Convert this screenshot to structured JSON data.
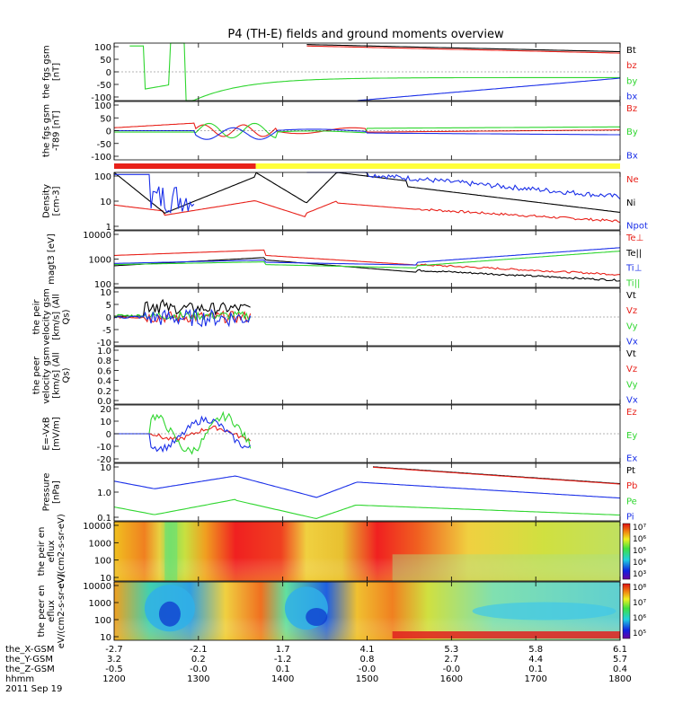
{
  "title": "P4 (TH-E) fields and ground moments overview",
  "colors": {
    "black": "#000000",
    "red": "#e8211a",
    "green": "#2fd62f",
    "blue": "#1a2fe8",
    "yellow": "#ffff3a"
  },
  "time_axis": {
    "range": [
      "12:00",
      "18:00"
    ],
    "ticks": [
      "1200",
      "1300",
      "1400",
      "1500",
      "1600",
      "1700",
      "1800"
    ]
  },
  "ephemeris": {
    "labels": [
      "the_X-GSM",
      "the_Y-GSM",
      "the_Z-GSM",
      "hhmm",
      "2011 Sep 19"
    ],
    "rows": [
      [
        "-2.7",
        "-2.1",
        "1.7",
        "4.1",
        "5.3",
        "5.8",
        "6.1"
      ],
      [
        "3.2",
        "0.2",
        "-1.2",
        "0.8",
        "2.7",
        "4.4",
        "5.7"
      ],
      [
        "-0.5",
        "-0.0",
        "0.1",
        "-0.0",
        "-0.0",
        "0.1",
        "0.4"
      ],
      [
        "1200",
        "1300",
        "1400",
        "1500",
        "1600",
        "1700",
        "1800"
      ]
    ]
  },
  "mode_bar": {
    "segments": [
      {
        "color": "red",
        "start": 0.0,
        "end": 0.28
      },
      {
        "color": "yellow",
        "start": 0.28,
        "end": 1.0
      }
    ]
  },
  "chart_data": [
    {
      "id": "fgs",
      "type": "line",
      "ylabel": "the fgs gsm [nT]",
      "ylim": [
        -100,
        100
      ],
      "yticks": [
        "100",
        "50",
        "0",
        "-50",
        "-100"
      ],
      "series": [
        {
          "name": "Bt",
          "color": "black"
        },
        {
          "name": "bz",
          "color": "red"
        },
        {
          "name": "by",
          "color": "green"
        },
        {
          "name": "bx",
          "color": "blue"
        }
      ]
    },
    {
      "id": "fgs_t89",
      "type": "line",
      "ylabel": "the fgs gsm -T89 [nT]",
      "ylim": [
        -100,
        100
      ],
      "yticks": [
        "100",
        "50",
        "0",
        "-50",
        "-100"
      ],
      "series": [
        {
          "name": "Bz",
          "color": "red"
        },
        {
          "name": "By",
          "color": "green"
        },
        {
          "name": "Bx",
          "color": "blue"
        }
      ]
    },
    {
      "id": "density",
      "type": "line",
      "ylabel": "Density [cm-3]",
      "yscale": "log",
      "ylim": [
        0.3,
        200
      ],
      "yticks": [
        "100",
        "10",
        "1"
      ],
      "series": [
        {
          "name": "Ne",
          "color": "red"
        },
        {
          "name": "Ni",
          "color": "black"
        },
        {
          "name": "Npot",
          "color": "blue"
        }
      ]
    },
    {
      "id": "temp",
      "type": "line",
      "ylabel": "magt3 [eV]",
      "yscale": "log",
      "ylim": [
        40,
        12000
      ],
      "yticks": [
        "10000",
        "1000",
        "100"
      ],
      "series": [
        {
          "name": "Te⊥",
          "color": "red"
        },
        {
          "name": "Te||",
          "color": "black"
        },
        {
          "name": "Ti⊥",
          "color": "blue"
        },
        {
          "name": "Ti||",
          "color": "green"
        }
      ]
    },
    {
      "id": "peir_vel",
      "type": "line",
      "ylabel": "the peir velocity gsm [km/s] (All Qs)",
      "ylim": [
        -10,
        10
      ],
      "yticks": [
        "10",
        "5",
        "0",
        "-5",
        "-10"
      ],
      "series": [
        {
          "name": "Vt",
          "color": "black"
        },
        {
          "name": "Vz",
          "color": "red"
        },
        {
          "name": "Vy",
          "color": "green"
        },
        {
          "name": "Vx",
          "color": "blue"
        }
      ]
    },
    {
      "id": "peer_vel",
      "type": "line",
      "ylabel": "the peer velocity gsm [km/s] (All Qs)",
      "ylim": [
        0,
        1
      ],
      "yticks": [
        "1.0",
        "0.8",
        "0.6",
        "0.4",
        "0.2",
        "0.0"
      ],
      "series": [
        {
          "name": "Vt",
          "color": "black"
        },
        {
          "name": "Vz",
          "color": "red"
        },
        {
          "name": "Vy",
          "color": "green"
        },
        {
          "name": "Vx",
          "color": "blue"
        }
      ]
    },
    {
      "id": "efield",
      "type": "line",
      "ylabel": "E=-VxB [mV/m]",
      "ylim": [
        -20,
        20
      ],
      "yticks": [
        "20",
        "10",
        "0",
        "-10",
        "-20"
      ],
      "series": [
        {
          "name": "Ez",
          "color": "red"
        },
        {
          "name": "Ey",
          "color": "green"
        },
        {
          "name": "Ex",
          "color": "blue"
        }
      ]
    },
    {
      "id": "pressure",
      "type": "line",
      "ylabel": "Pressure [nPa]",
      "yscale": "log",
      "ylim": [
        0.03,
        30
      ],
      "yticks": [
        "10",
        "1.0",
        "0.1"
      ],
      "series": [
        {
          "name": "Pt",
          "color": "black"
        },
        {
          "name": "Pb",
          "color": "red"
        },
        {
          "name": "Pe",
          "color": "green"
        },
        {
          "name": "Pi",
          "color": "blue"
        }
      ]
    },
    {
      "id": "peir_spec",
      "type": "heatmap",
      "ylabel": "the peir en eflux eV/(cm2-s-sr-eV)",
      "yscale": "log",
      "yticks": [
        "10000",
        "1000",
        "100",
        "10"
      ],
      "colorbar": {
        "ticks": [
          "10⁷",
          "10⁶",
          "10⁵",
          "10⁴",
          "10³"
        ]
      }
    },
    {
      "id": "peer_spec",
      "type": "heatmap",
      "ylabel": "the peer en eflux eV/(cm2-s-sr-eV)",
      "yscale": "log",
      "yticks": [
        "10000",
        "1000",
        "100",
        "10"
      ],
      "colorbar": {
        "ticks": [
          "10⁸",
          "10⁷",
          "10⁶",
          "10⁵"
        ]
      }
    }
  ]
}
